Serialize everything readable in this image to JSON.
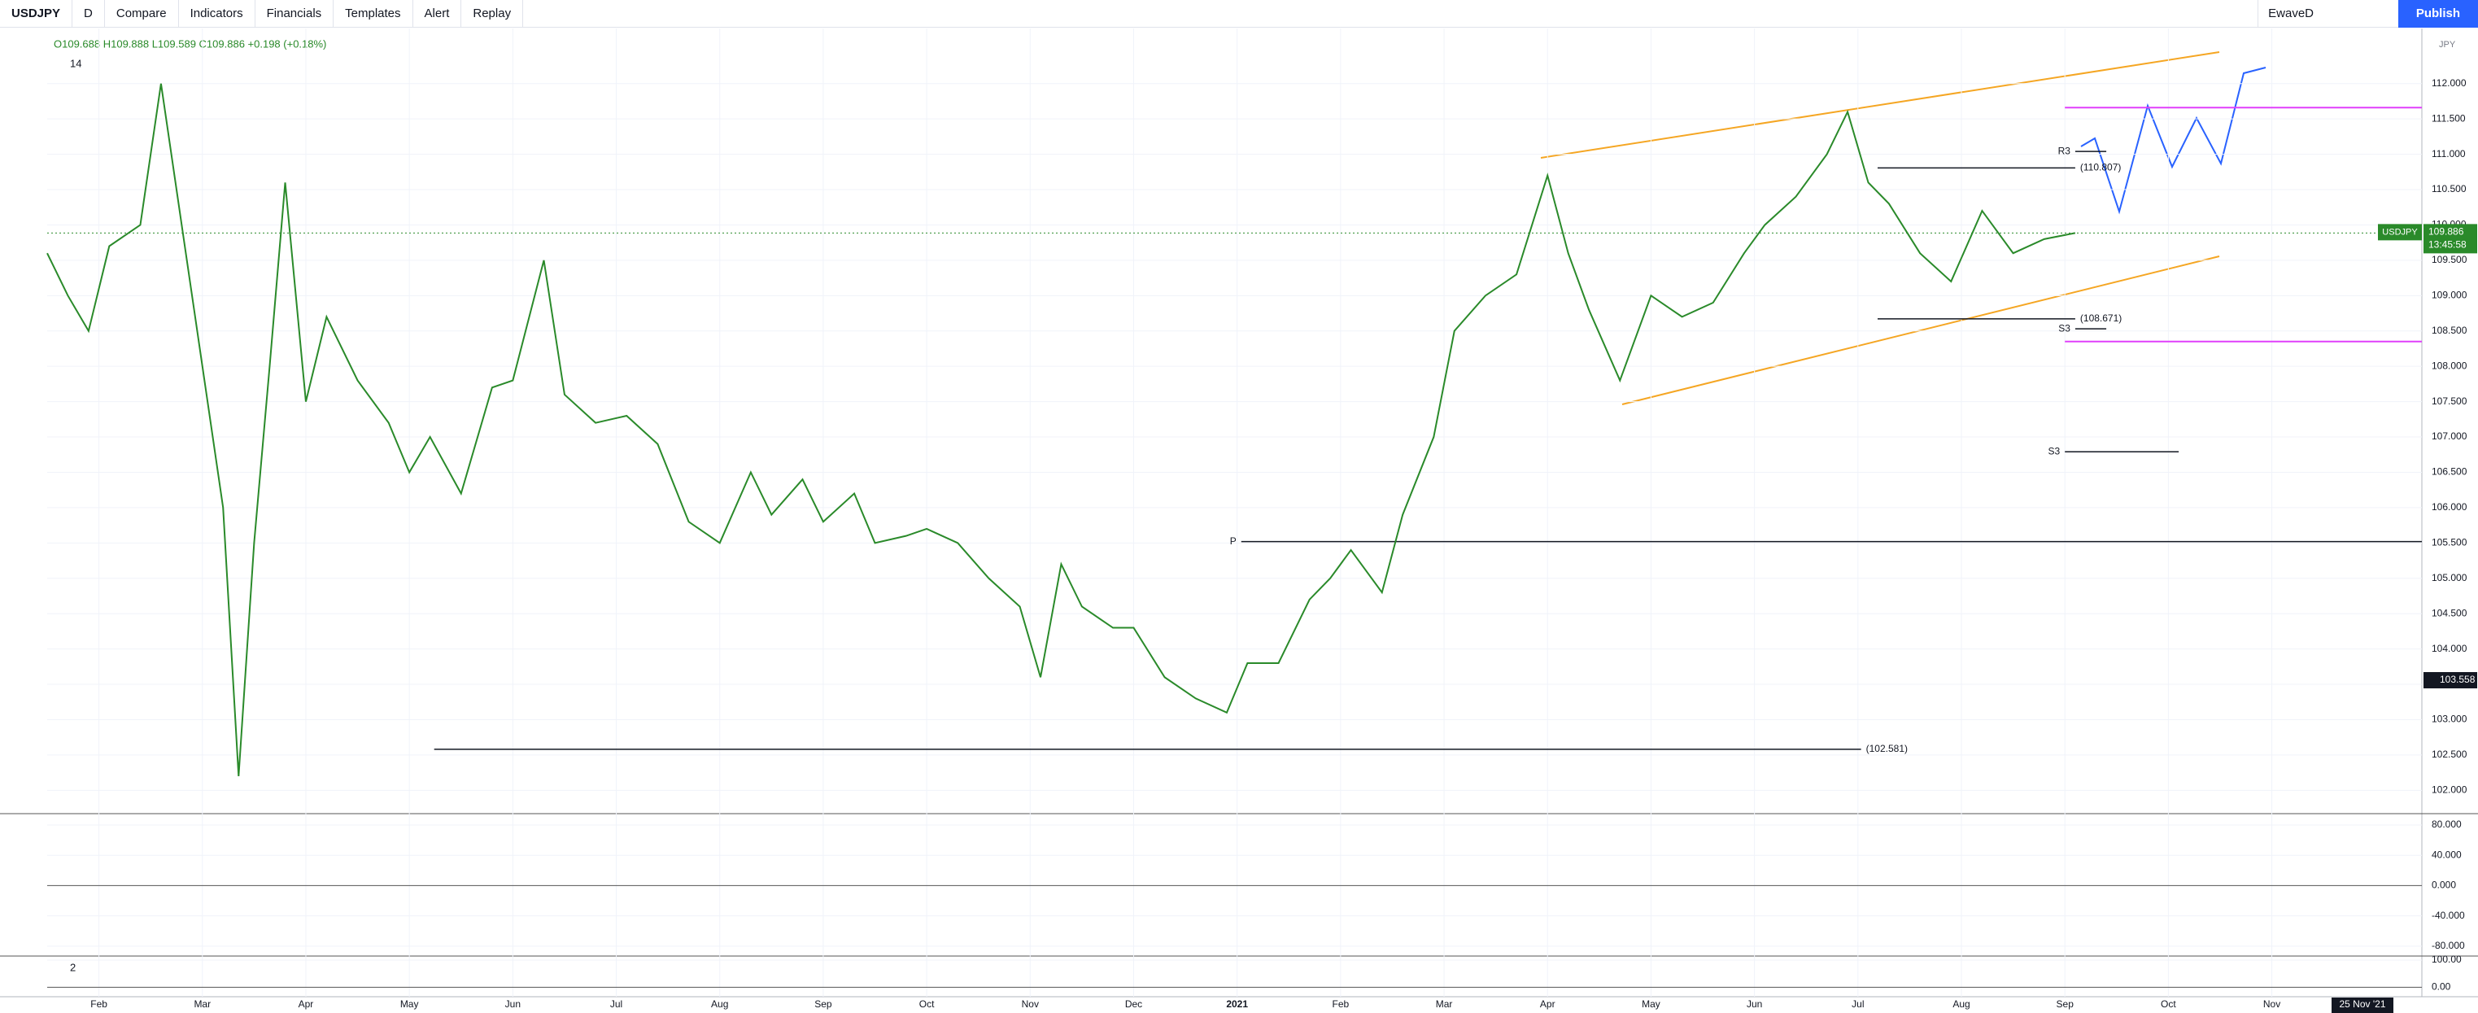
{
  "toolbar": {
    "symbol": "USDJPY",
    "interval": "D",
    "buttons": [
      "Compare",
      "Indicators",
      "Financials",
      "Templates",
      "Alert",
      "Replay"
    ],
    "layout_name": "EwaveD",
    "publish": "Publish"
  },
  "legend": {
    "ohlc": "O109.688 H109.888 L109.589 C109.886 +0.198 (+0.18%)",
    "indicator_length": "14"
  },
  "chart_data": {
    "type": "line",
    "currency": "JPY",
    "series": [
      {
        "name": "USDJPY",
        "color": "#2a8a2a",
        "x": [
          0.5,
          0.7,
          0.9,
          1.1,
          1.4,
          1.6,
          1.8,
          2.0,
          2.2,
          2.35,
          2.5,
          2.65,
          2.8,
          3.0,
          3.2,
          3.5,
          3.8,
          4.0,
          4.2,
          4.5,
          4.8,
          5.0,
          5.3,
          5.5,
          5.8,
          6.1,
          6.4,
          6.7,
          7.0,
          7.3,
          7.5,
          7.8,
          8.0,
          8.3,
          8.5,
          8.8,
          9.0,
          9.3,
          9.6,
          9.9,
          10.1,
          10.3,
          10.5,
          10.8,
          11.0,
          11.3,
          11.6,
          11.9,
          12.1,
          12.4,
          12.7,
          12.9,
          13.1,
          13.4,
          13.6,
          13.9,
          14.1,
          14.4,
          14.7,
          15.0,
          15.2,
          15.4,
          15.7,
          16.0,
          16.3,
          16.6,
          16.9,
          17.1,
          17.4,
          17.7,
          17.9,
          18.1,
          18.3,
          18.6,
          18.9,
          19.2,
          19.5,
          19.8,
          20.1
        ],
        "values": [
          109.6,
          109.0,
          108.5,
          109.7,
          110.0,
          112.0,
          110.0,
          108.0,
          106.0,
          102.2,
          105.5,
          108.0,
          110.6,
          107.5,
          108.7,
          107.8,
          107.2,
          106.5,
          107.0,
          106.2,
          107.7,
          107.8,
          109.5,
          107.6,
          107.2,
          107.3,
          106.9,
          105.8,
          105.5,
          106.5,
          105.9,
          106.4,
          105.8,
          106.2,
          105.5,
          105.6,
          105.7,
          105.5,
          105.0,
          104.6,
          103.6,
          105.2,
          104.6,
          104.3,
          104.3,
          103.6,
          103.3,
          103.1,
          103.8,
          103.8,
          104.7,
          105.0,
          105.4,
          104.8,
          105.9,
          107.0,
          108.5,
          109.0,
          109.3,
          110.7,
          109.6,
          108.8,
          107.8,
          109.0,
          108.7,
          108.9,
          109.6,
          110.0,
          110.4,
          111.0,
          111.6,
          110.6,
          110.3,
          109.6,
          109.2,
          110.2,
          109.6,
          109.8,
          109.886
        ]
      }
    ],
    "xlim": [
      0.5,
      23.45
    ],
    "xticks": [
      {
        "value": 1,
        "label": "Feb"
      },
      {
        "value": 2,
        "label": "Mar"
      },
      {
        "value": 3,
        "label": "Apr"
      },
      {
        "value": 4,
        "label": "May"
      },
      {
        "value": 5,
        "label": "Jun"
      },
      {
        "value": 6,
        "label": "Jul"
      },
      {
        "value": 7,
        "label": "Aug"
      },
      {
        "value": 8,
        "label": "Sep"
      },
      {
        "value": 9,
        "label": "Oct"
      },
      {
        "value": 10,
        "label": "Nov"
      },
      {
        "value": 11,
        "label": "Dec"
      },
      {
        "value": 12,
        "label": "2021"
      },
      {
        "value": 13,
        "label": "Feb"
      },
      {
        "value": 14,
        "label": "Mar"
      },
      {
        "value": 15,
        "label": "Apr"
      },
      {
        "value": 16,
        "label": "May"
      },
      {
        "value": 17,
        "label": "Jun"
      },
      {
        "value": 18,
        "label": "Jul"
      },
      {
        "value": 19,
        "label": "Aug"
      },
      {
        "value": 20,
        "label": "Sep"
      },
      {
        "value": 21,
        "label": "Oct"
      },
      {
        "value": 22,
        "label": "Nov"
      }
    ],
    "ylim": [
      101.67,
      112.78
    ],
    "yticks": [
      {
        "value": 102,
        "label": "102.000"
      },
      {
        "value": 102.5,
        "label": "102.500"
      },
      {
        "value": 103,
        "label": "103.000"
      },
      {
        "value": 103.5,
        "label": "103.500"
      },
      {
        "value": 104,
        "label": "104.000"
      },
      {
        "value": 104.5,
        "label": "104.500"
      },
      {
        "value": 105,
        "label": "105.000"
      },
      {
        "value": 105.5,
        "label": "105.500"
      },
      {
        "value": 106,
        "label": "106.000"
      },
      {
        "value": 106.5,
        "label": "106.500"
      },
      {
        "value": 107,
        "label": "107.000"
      },
      {
        "value": 107.5,
        "label": "107.500"
      },
      {
        "value": 108,
        "label": "108.000"
      },
      {
        "value": 108.5,
        "label": "108.500"
      },
      {
        "value": 109,
        "label": "109.000"
      },
      {
        "value": 109.5,
        "label": "109.500"
      },
      {
        "value": 110,
        "label": "110.000"
      },
      {
        "value": 110.5,
        "label": "110.500"
      },
      {
        "value": 111,
        "label": "111.000"
      },
      {
        "value": 111.5,
        "label": "111.500"
      },
      {
        "value": 112,
        "label": "112.000"
      }
    ],
    "grid": true,
    "levels": [
      {
        "value": 102.581,
        "label": "(102.581)",
        "from": 4.24,
        "to": 18.03
      },
      {
        "value": 110.807,
        "label": "(110.807)",
        "from": 18.19,
        "to": 20.1
      },
      {
        "value": 108.671,
        "label": "(108.671)",
        "from": 18.19,
        "to": 20.1
      },
      {
        "value": 111.04,
        "label": "R3",
        "from": 20.1,
        "to": 20.4
      },
      {
        "value": 108.53,
        "label": "S3",
        "from": 20.1,
        "to": 20.4
      },
      {
        "value": 106.79,
        "label": "S3",
        "from": 20.0,
        "to": 21.1
      },
      {
        "value": 105.52,
        "label": "P",
        "from": 12.04,
        "to": 23.45
      }
    ],
    "pink_levels": [
      111.66,
      108.35
    ],
    "last_price": 109.886,
    "countdown": "13:45:58",
    "crosshair_price": 103.558,
    "cursor_date": "25 Nov '21"
  },
  "oscillator": {
    "ylim": [
      -93,
      95
    ],
    "yticks": [
      {
        "value": 80,
        "label": "80.000"
      },
      {
        "value": 40,
        "label": "40.000"
      },
      {
        "value": 0,
        "label": "0.000"
      },
      {
        "value": -40,
        "label": "-40.000"
      },
      {
        "value": -80,
        "label": "-80.000"
      }
    ]
  },
  "stochastic": {
    "length": "2",
    "ylim": [
      -35,
      115
    ],
    "yticks": [
      {
        "value": 100,
        "label": "100.00"
      },
      {
        "value": 0,
        "label": "0.00"
      }
    ]
  }
}
